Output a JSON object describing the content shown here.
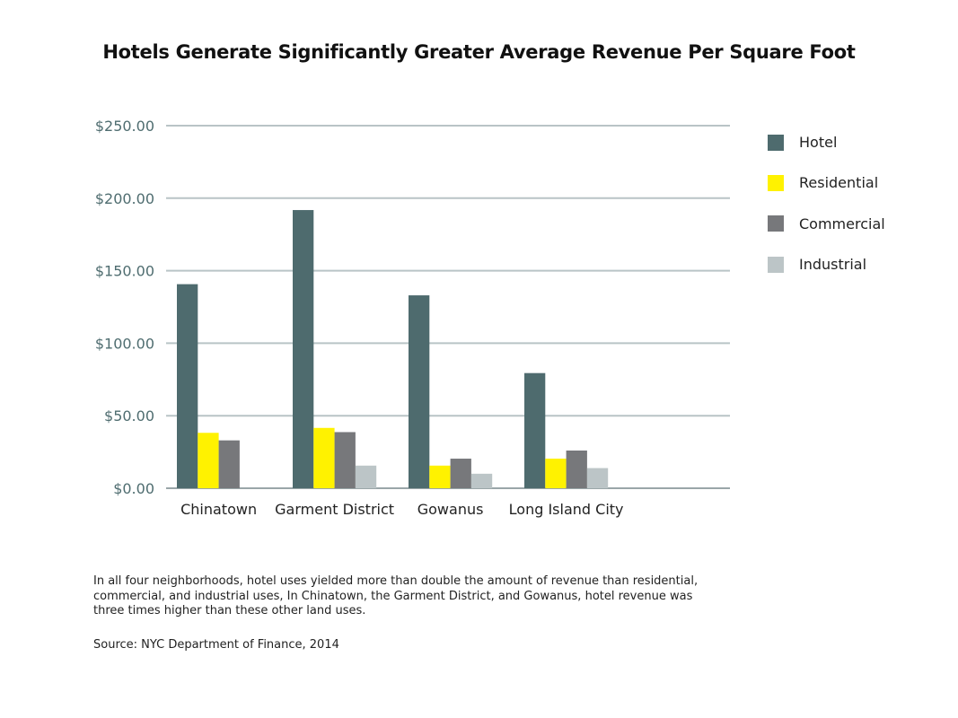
{
  "chart_data": {
    "type": "bar",
    "title": "Hotels Generate Significantly Greater Average Revenue Per Square Foot",
    "categories": [
      "Chinatown",
      "Garment District",
      "Gowanus",
      "Long Island City"
    ],
    "series": [
      {
        "name": "Hotel",
        "color": "#4e6b6e",
        "values": [
          140.7,
          191.8,
          133.0,
          79.4
        ]
      },
      {
        "name": "Residential",
        "color": "#fff200",
        "values": [
          38.2,
          41.6,
          15.6,
          20.4
        ]
      },
      {
        "name": "Commercial",
        "color": "#77787b",
        "values": [
          33.0,
          38.7,
          20.4,
          26.0
        ]
      },
      {
        "name": "Industrial",
        "color": "#bcc5c7",
        "values": [
          null,
          15.6,
          10.0,
          13.9
        ]
      }
    ],
    "yticks": [
      "$0.00",
      "$50.00",
      "$100.00",
      "$150.00",
      "$200.00",
      "$250.00"
    ],
    "ylim": [
      0,
      250
    ],
    "grid": true,
    "legend": "right"
  },
  "note": "In all four neighborhoods, hotel uses yielded more than double the amount of revenue than residential, commercial, and industrial uses, In Chinatown, the Garment District, and Gowanus, hotel revenue was three times higher than these other land uses.",
  "source": "Source: NYC Department of Finance, 2014"
}
